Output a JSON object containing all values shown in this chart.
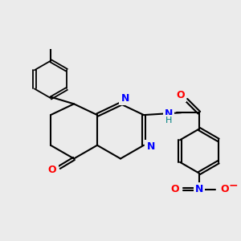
{
  "background_color": "#EBEBEB",
  "bond_color": "#000000",
  "atom_colors": {
    "O": "#FF0000",
    "N": "#0000FF",
    "H": "#008080",
    "N_minus": "#FF0000",
    "plus": "#000000"
  },
  "figsize": [
    3.0,
    3.0
  ],
  "dpi": 100
}
